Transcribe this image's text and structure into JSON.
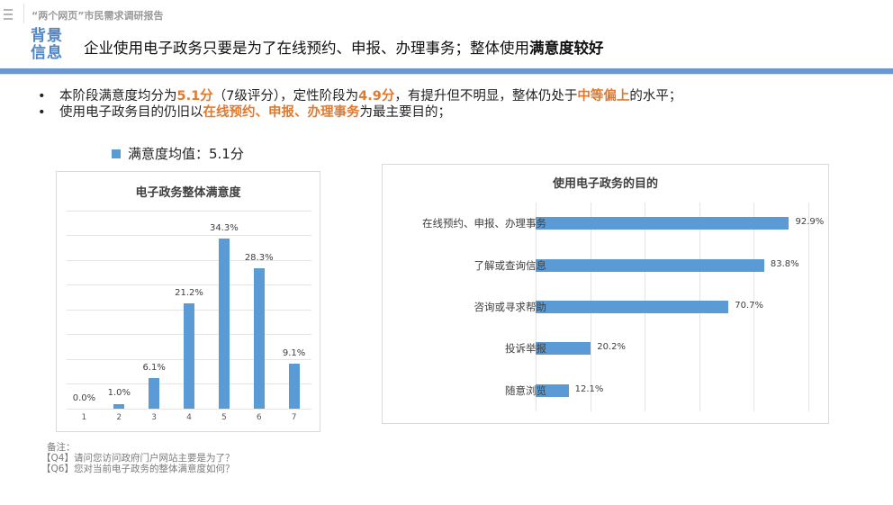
{
  "header": {
    "menu_icon": "hamburger-menu-icon",
    "report_title": "“两个网页”市民需求调研报告",
    "section_tag_line1": "背景",
    "section_tag_line2": "信息",
    "headline_normal": "企业使用电子政务只要是为了在线预约、申报、办理事务；整体使用",
    "headline_bold": "满意度较好"
  },
  "colors": {
    "accent_blue": "#4f86c6",
    "rule_blue": "#6898ce",
    "bar_blue": "#5b9bd5",
    "highlight_orange": "#e07a2e"
  },
  "bullets": [
    {
      "parts": [
        {
          "text": "本阶段满意度均分为",
          "hl": false
        },
        {
          "text": "5.1分",
          "hl": true
        },
        {
          "text": "（7级评分），定性阶段为",
          "hl": false
        },
        {
          "text": "4.9分",
          "hl": true
        },
        {
          "text": "，有提升但不明显，整体仍处于",
          "hl": false
        },
        {
          "text": "中等偏上",
          "hl": true
        },
        {
          "text": "的水平；",
          "hl": false
        }
      ]
    },
    {
      "parts": [
        {
          "text": "使用电子政务目的仍旧以",
          "hl": false
        },
        {
          "text": "在线预约、申报、办理事务",
          "hl": true
        },
        {
          "text": "为最主要目的；",
          "hl": false
        }
      ]
    }
  ],
  "legend": {
    "label": "满意度均值：5.1分"
  },
  "chart_data": [
    {
      "type": "bar",
      "title": "电子政务整体满意度",
      "categories": [
        "1",
        "2",
        "3",
        "4",
        "5",
        "6",
        "7"
      ],
      "values": [
        0.0,
        1.0,
        6.1,
        21.2,
        34.3,
        28.3,
        9.1
      ],
      "labels": [
        "0.0%",
        "1.0%",
        "6.1%",
        "21.2%",
        "34.3%",
        "28.3%",
        "9.1%"
      ],
      "unit": "%",
      "xlabel": "",
      "ylabel": "",
      "ylim": [
        0,
        40
      ],
      "grid": true,
      "grid_step": 5,
      "y_axis_visible": false
    },
    {
      "type": "bar",
      "orientation": "horizontal",
      "title": "使用电子政务的目的",
      "categories": [
        "在线预约、申报、办理事务",
        "了解或查询信息",
        "咨询或寻求帮助",
        "投诉举报",
        "随意浏览"
      ],
      "values": [
        92.9,
        83.8,
        70.7,
        20.2,
        12.1
      ],
      "labels": [
        "92.9%",
        "83.8%",
        "70.7%",
        "20.2%",
        "12.1%"
      ],
      "unit": "%",
      "xlabel": "",
      "ylabel": "",
      "xlim": [
        0,
        100
      ],
      "grid": true,
      "grid_step": 20,
      "x_axis_visible": false
    }
  ],
  "notes": {
    "title": "备注：",
    "items": [
      "【Q4】请问您访问政府门户网站主要是为了？",
      "【Q6】您对当前电子政务的整体满意度如何？"
    ]
  }
}
